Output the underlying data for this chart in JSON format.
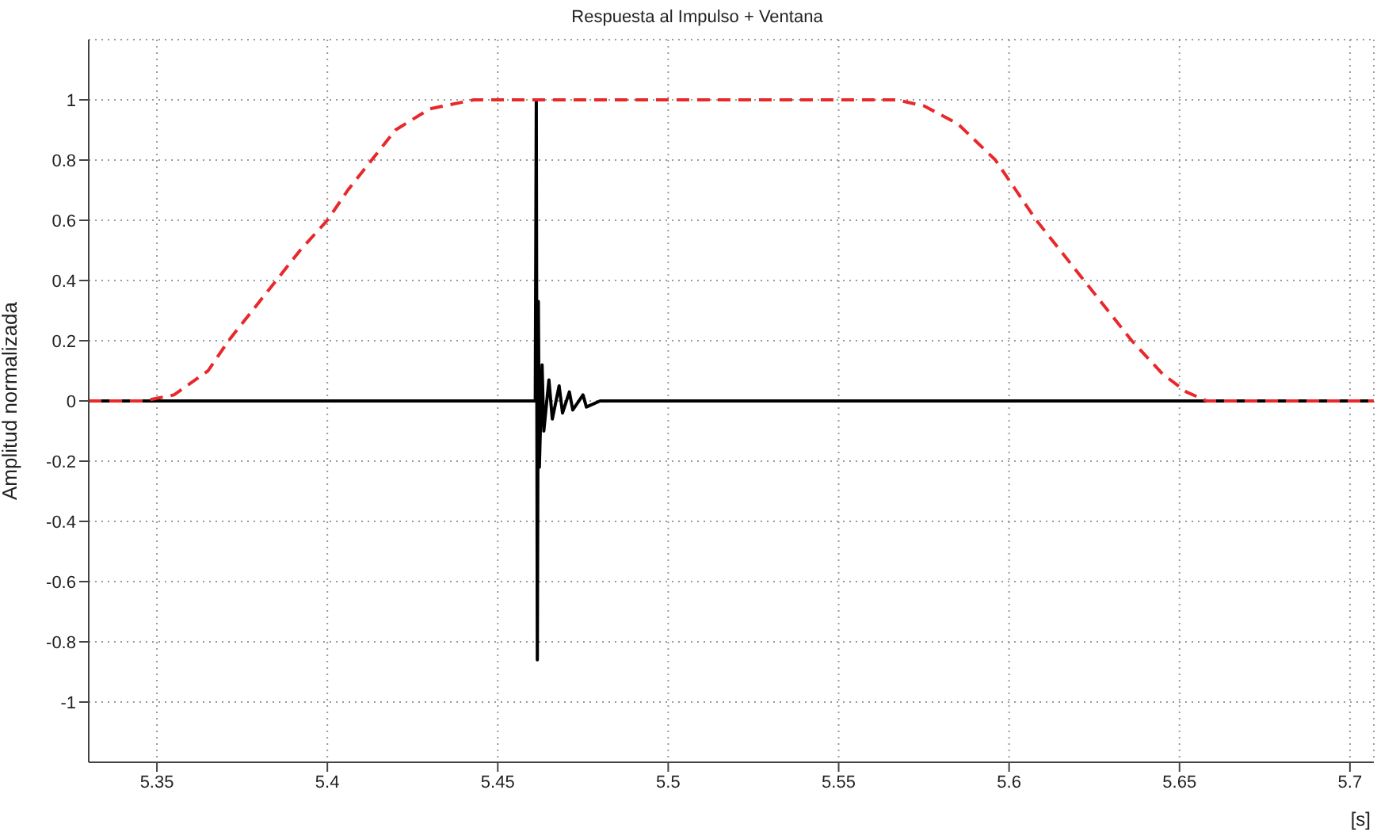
{
  "chart_data": {
    "type": "line",
    "title": "Respuesta al Impulso + Ventana",
    "xlabel": "[s]",
    "ylabel": "Amplitud normalizada",
    "xlim": [
      5.33,
      5.707
    ],
    "xticks": [
      5.35,
      5.4,
      5.45,
      5.5,
      5.55,
      5.6,
      5.65,
      5.7
    ],
    "ylim": [
      -1.2,
      1.2
    ],
    "yticks": [
      -1,
      -0.8,
      -0.6,
      -0.4,
      -0.2,
      0,
      0.2,
      0.4,
      0.6,
      0.8,
      1
    ],
    "grid": true,
    "marker": "none",
    "series": [
      {
        "color": "#000000",
        "line_style": "solid",
        "x": [
          5.33,
          5.461,
          5.4613,
          5.4616,
          5.4619,
          5.4622,
          5.463,
          5.4635,
          5.465,
          5.466,
          5.468,
          5.469,
          5.471,
          5.472,
          5.475,
          5.476,
          5.48,
          5.707
        ],
        "values": [
          0,
          0,
          1,
          -0.86,
          0.33,
          -0.22,
          0.12,
          -0.1,
          0.07,
          -0.06,
          0.05,
          -0.04,
          0.03,
          -0.03,
          0.02,
          -0.02,
          0,
          0
        ]
      },
      {
        "color": "#e8282a",
        "line_style": "dashed",
        "x": [
          5.33,
          5.346,
          5.355,
          5.365,
          5.371,
          5.378,
          5.385,
          5.392,
          5.4,
          5.406,
          5.413,
          5.42,
          5.43,
          5.443,
          5.567,
          5.575,
          5.585,
          5.596,
          5.602,
          5.608,
          5.615,
          5.622,
          5.629,
          5.636,
          5.645,
          5.652,
          5.658,
          5.707
        ],
        "values": [
          0,
          0,
          0.02,
          0.1,
          0.2,
          0.3,
          0.4,
          0.5,
          0.6,
          0.7,
          0.8,
          0.9,
          0.97,
          1,
          1,
          0.98,
          0.92,
          0.8,
          0.7,
          0.6,
          0.5,
          0.4,
          0.3,
          0.2,
          0.09,
          0.03,
          0,
          0
        ]
      }
    ]
  }
}
